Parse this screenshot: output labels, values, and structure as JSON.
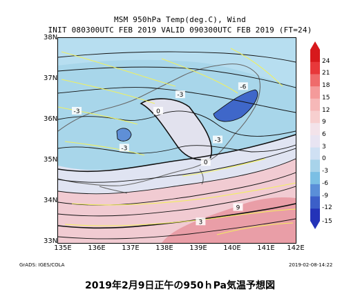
{
  "header": {
    "line1": "MSM 950hPa Temp(deg.C), Wind",
    "line2": "INIT 080300UTC FEB 2019   VALID 090300UTC FEB 2019 (FT=24)"
  },
  "axes": {
    "lat_labels": [
      "38N",
      "37N",
      "36N",
      "35N",
      "34N",
      "33N"
    ],
    "lon_labels": [
      "135E",
      "136E",
      "137E",
      "138E",
      "139E",
      "140E",
      "141E",
      "142E"
    ],
    "lat_range": [
      33,
      38
    ],
    "lon_range": [
      135,
      142
    ]
  },
  "colorbar": {
    "labels": [
      "24",
      "21",
      "18",
      "15",
      "12",
      "9",
      "6",
      "3",
      "0",
      "-3",
      "-6",
      "-9",
      "-12",
      "-15"
    ],
    "colors": [
      "#d7191c",
      "#e8383a",
      "#ef6b6b",
      "#f49a9a",
      "#f6b8b8",
      "#f7cfcf",
      "#f3e3ea",
      "#e8e4f2",
      "#cfe0f3",
      "#a8d3ea",
      "#7bbfe4",
      "#5a8fd8",
      "#3c5fc8",
      "#2433b8"
    ]
  },
  "contour_labels": [
    {
      "text": "-3",
      "lon": 135.55,
      "lat": 36.2
    },
    {
      "text": "-3",
      "lon": 138.6,
      "lat": 36.6
    },
    {
      "text": "-6",
      "lon": 140.45,
      "lat": 36.8
    },
    {
      "text": "-3",
      "lon": 136.95,
      "lat": 35.3
    },
    {
      "text": "0",
      "lon": 137.95,
      "lat": 36.2
    },
    {
      "text": "-3",
      "lon": 139.7,
      "lat": 35.5
    },
    {
      "text": "0",
      "lon": 139.35,
      "lat": 34.95
    },
    {
      "text": "3",
      "lon": 139.2,
      "lat": 33.5
    },
    {
      "text": "9",
      "lon": 140.3,
      "lat": 33.85
    }
  ],
  "footer": {
    "left": "GrADS: IGES/COLA",
    "right": "2019-02-08-14:22"
  },
  "caption": "2019年2月9日正午の950ｈPa気温予想図",
  "colors": {
    "cold": "#9fd0ea",
    "cold_dark": "#6aa8dd",
    "core": "#3d64c8",
    "neutral": "#dfe3f1",
    "warm": "#f2c9cf",
    "warm_dark": "#ea9aa2",
    "land": "#707070",
    "wind": "#f3f25a",
    "contour": "#111111"
  }
}
